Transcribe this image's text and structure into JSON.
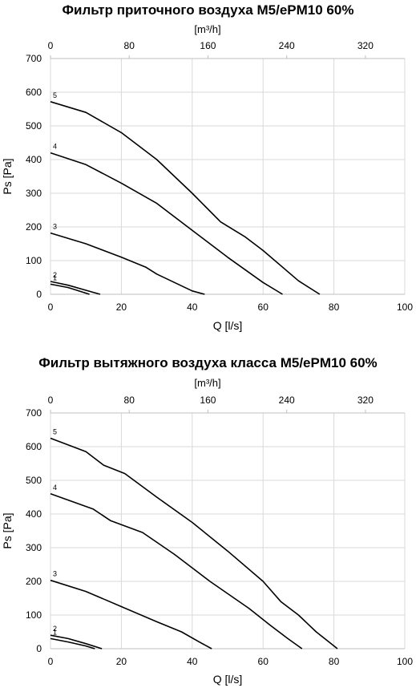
{
  "chart_data": [
    {
      "type": "line",
      "title": "Фильтр приточного воздуха M5/ePM10 60%",
      "xlabel": "Q [l/s]",
      "ylabel": "Ps [Pa]",
      "x2label": "[m³/h]",
      "xlim": [
        0,
        100
      ],
      "ylim": [
        0,
        700
      ],
      "x2lim": [
        0,
        360
      ],
      "xticks": [
        "0",
        "20",
        "40",
        "60",
        "80",
        "100"
      ],
      "yticks": [
        "0",
        "100",
        "200",
        "300",
        "400",
        "500",
        "600",
        "700"
      ],
      "x2ticks": [
        "0",
        "80",
        "160",
        "240",
        "320"
      ],
      "grid": true,
      "series": [
        {
          "name": "1",
          "x": [
            0,
            5,
            9.5,
            11
          ],
          "y": [
            30,
            20,
            5,
            0
          ]
        },
        {
          "name": "2",
          "x": [
            0,
            5,
            10,
            14
          ],
          "y": [
            38,
            27,
            12,
            0
          ]
        },
        {
          "name": "3",
          "x": [
            0,
            10,
            20,
            27,
            30,
            35,
            40,
            43.5
          ],
          "y": [
            182,
            150,
            110,
            80,
            60,
            35,
            10,
            0
          ]
        },
        {
          "name": "4",
          "x": [
            0,
            10,
            20,
            30,
            40,
            50,
            60,
            65.5
          ],
          "y": [
            420,
            385,
            330,
            270,
            190,
            110,
            35,
            0
          ]
        },
        {
          "name": "5",
          "x": [
            0,
            10,
            20,
            30,
            40,
            48,
            55,
            60,
            70,
            76
          ],
          "y": [
            572,
            540,
            480,
            400,
            300,
            215,
            170,
            130,
            40,
            0
          ]
        }
      ]
    },
    {
      "type": "line",
      "title": "Фильтр вытяжного воздуха класса M5/ePM10 60%",
      "xlabel": "Q [l/s]",
      "ylabel": "Ps [Pa]",
      "x2label": "[m³/h]",
      "xlim": [
        0,
        100
      ],
      "ylim": [
        0,
        700
      ],
      "x2lim": [
        0,
        360
      ],
      "xticks": [
        "0",
        "20",
        "40",
        "60",
        "80",
        "100"
      ],
      "yticks": [
        "0",
        "100",
        "200",
        "300",
        "400",
        "500",
        "600",
        "700"
      ],
      "x2ticks": [
        "0",
        "80",
        "160",
        "240",
        "320"
      ],
      "grid": true,
      "series": [
        {
          "name": "1",
          "x": [
            0,
            5,
            10,
            12.5
          ],
          "y": [
            30,
            20,
            8,
            0
          ]
        },
        {
          "name": "2",
          "x": [
            0,
            5,
            10,
            14.5
          ],
          "y": [
            40,
            30,
            15,
            0
          ]
        },
        {
          "name": "3",
          "x": [
            0,
            10,
            20,
            30,
            37,
            42,
            45.5
          ],
          "y": [
            203,
            170,
            125,
            80,
            50,
            20,
            0
          ]
        },
        {
          "name": "4",
          "x": [
            0,
            12,
            17,
            26,
            35,
            45,
            56,
            62,
            67,
            71
          ],
          "y": [
            460,
            415,
            380,
            345,
            280,
            200,
            120,
            70,
            30,
            0
          ]
        },
        {
          "name": "5",
          "x": [
            0,
            10,
            15,
            21,
            30,
            40,
            50,
            60,
            65,
            70,
            75,
            81
          ],
          "y": [
            625,
            585,
            545,
            520,
            450,
            375,
            290,
            200,
            140,
            100,
            50,
            0
          ]
        }
      ]
    }
  ]
}
